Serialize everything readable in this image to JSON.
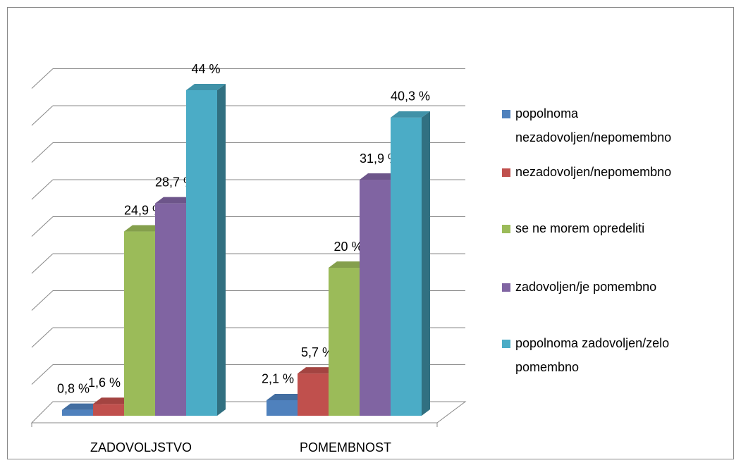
{
  "chart_data": {
    "type": "bar3d",
    "categories": [
      "ZADOVOLJSTVO",
      "POMEMBNOST"
    ],
    "series": [
      {
        "name": "popolnoma nezadovoljen/nepomembno",
        "color": "#4f81bd",
        "values": [
          0.8,
          2.1
        ],
        "value_labels": [
          "0,8 %",
          "2,1 %"
        ]
      },
      {
        "name": "nezadovoljen/nepomembno",
        "color": "#c0504d",
        "values": [
          1.6,
          5.7
        ],
        "value_labels": [
          "1,6 %",
          "5,7 %"
        ]
      },
      {
        "name": "se ne morem opredeliti",
        "color": "#9bbb59",
        "values": [
          24.9,
          20
        ],
        "value_labels": [
          "24,9 %",
          "20 %"
        ]
      },
      {
        "name": "zadovoljen/je pomembno",
        "color": "#8064a2",
        "values": [
          28.7,
          31.9
        ],
        "value_labels": [
          "28,7 %",
          "31,9 %"
        ]
      },
      {
        "name": " popolnoma zadovoljen/zelo pomembno",
        "color": "#4bacc6",
        "values": [
          44,
          40.3
        ],
        "value_labels": [
          "44 %",
          "40,3 %"
        ]
      }
    ],
    "ylim": [
      0,
      45
    ],
    "yticks": [
      0,
      5,
      10,
      15,
      20,
      25,
      30,
      35,
      40,
      45
    ],
    "grid": true,
    "legend": "right"
  }
}
